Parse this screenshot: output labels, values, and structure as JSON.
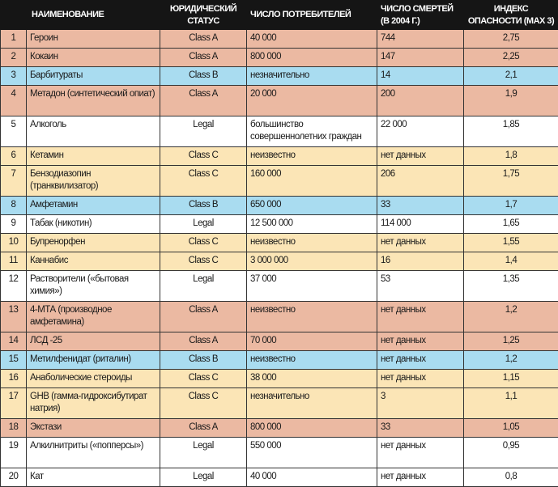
{
  "headers": {
    "num": "",
    "name": "НАИМЕНОВАНИЕ",
    "status": "ЮРИДИЧЕСКИЙ СТАТУС",
    "users": "ЧИСЛО ПОТРЕБИТЕЛЕЙ",
    "deaths": "ЧИСЛО СМЕРТЕЙ (в 2004 г.)",
    "index": "ИНДЕКС ОПАСНОСТИ (max 3)"
  },
  "colors": {
    "Class A": "#ebb9a2",
    "Class B": "#a9dcf0",
    "Class C": "#fbe5b6",
    "Legal": "#ffffff",
    "header": "#151515"
  },
  "rows": [
    {
      "num": "1",
      "name": "Героин",
      "status": "Class A",
      "users": "40 000",
      "deaths": "744",
      "index": "2,75"
    },
    {
      "num": "2",
      "name": "Кокаин",
      "status": "Class A",
      "users": "800 000",
      "deaths": "147",
      "index": "2,25"
    },
    {
      "num": "3",
      "name": "Барбитураты",
      "status": "Class B",
      "users": "незначительно",
      "deaths": "14",
      "index": "2,1"
    },
    {
      "num": "4",
      "name": "Метадон (синтетический опиат)",
      "status": "Class A",
      "users": "20 000",
      "deaths": "200",
      "index": "1,9"
    },
    {
      "num": "5",
      "name": "Алкоголь",
      "status": "Legal",
      "users": "большинство совершеннолетних граждан",
      "deaths": "22 000",
      "index": "1,85"
    },
    {
      "num": "6",
      "name": "Кетамин",
      "status": "Class C",
      "users": "неизвестно",
      "deaths": "нет данных",
      "index": "1,8"
    },
    {
      "num": "7",
      "name": "Бензодиазопин (транквилизатор)",
      "status": "Class C",
      "users": "160 000",
      "deaths": "206",
      "index": "1,75"
    },
    {
      "num": "8",
      "name": "Амфетамин",
      "status": "Class B",
      "users": "650 000",
      "deaths": "33",
      "index": "1,7"
    },
    {
      "num": "9",
      "name": "Табак (никотин)",
      "status": "Legal",
      "users": "12 500 000",
      "deaths": "114 000",
      "index": "1,65"
    },
    {
      "num": "10",
      "name": "Бупренорфен",
      "status": "Class C",
      "users": "неизвестно",
      "deaths": "нет данных",
      "index": "1,55"
    },
    {
      "num": "11",
      "name": "Каннабис",
      "status": "Class C",
      "users": "3 000 000",
      "deaths": "16",
      "index": "1,4"
    },
    {
      "num": "12",
      "name": "Растворители («бытовая химия»)",
      "status": "Legal",
      "users": "37 000",
      "deaths": "53",
      "index": "1,35"
    },
    {
      "num": "13",
      "name": "4-МТА (производное амфетамина)",
      "status": "Class A",
      "users": "неизвестно",
      "deaths": "нет данных",
      "index": "1,2"
    },
    {
      "num": "14",
      "name": "ЛСД -25",
      "status": "Class A",
      "users": "70 000",
      "deaths": "нет данных",
      "index": "1,25"
    },
    {
      "num": "15",
      "name": "Метилфенидат (риталин)",
      "status": "Class B",
      "users": "неизвестно",
      "deaths": "нет данных",
      "index": "1,2"
    },
    {
      "num": "16",
      "name": "Анаболические стероиды",
      "status": "Class C",
      "users": "38 000",
      "deaths": "нет данных",
      "index": "1,15"
    },
    {
      "num": "17",
      "name": "GHB (гамма-гидроксибутират натрия)",
      "status": "Class C",
      "users": "незначительно",
      "deaths": "3",
      "index": "1,1"
    },
    {
      "num": "18",
      "name": "Экстази",
      "status": "Class A",
      "users": "800 000",
      "deaths": "33",
      "index": "1,05"
    },
    {
      "num": "19",
      "name": "Алкилнитриты («попперсы»)",
      "status": "Legal",
      "users": "550 000",
      "deaths": "нет данных",
      "index": "0,95"
    },
    {
      "num": "20",
      "name": "Кат",
      "status": "Legal",
      "users": "40 000",
      "deaths": "нет данных",
      "index": "0,8"
    }
  ]
}
